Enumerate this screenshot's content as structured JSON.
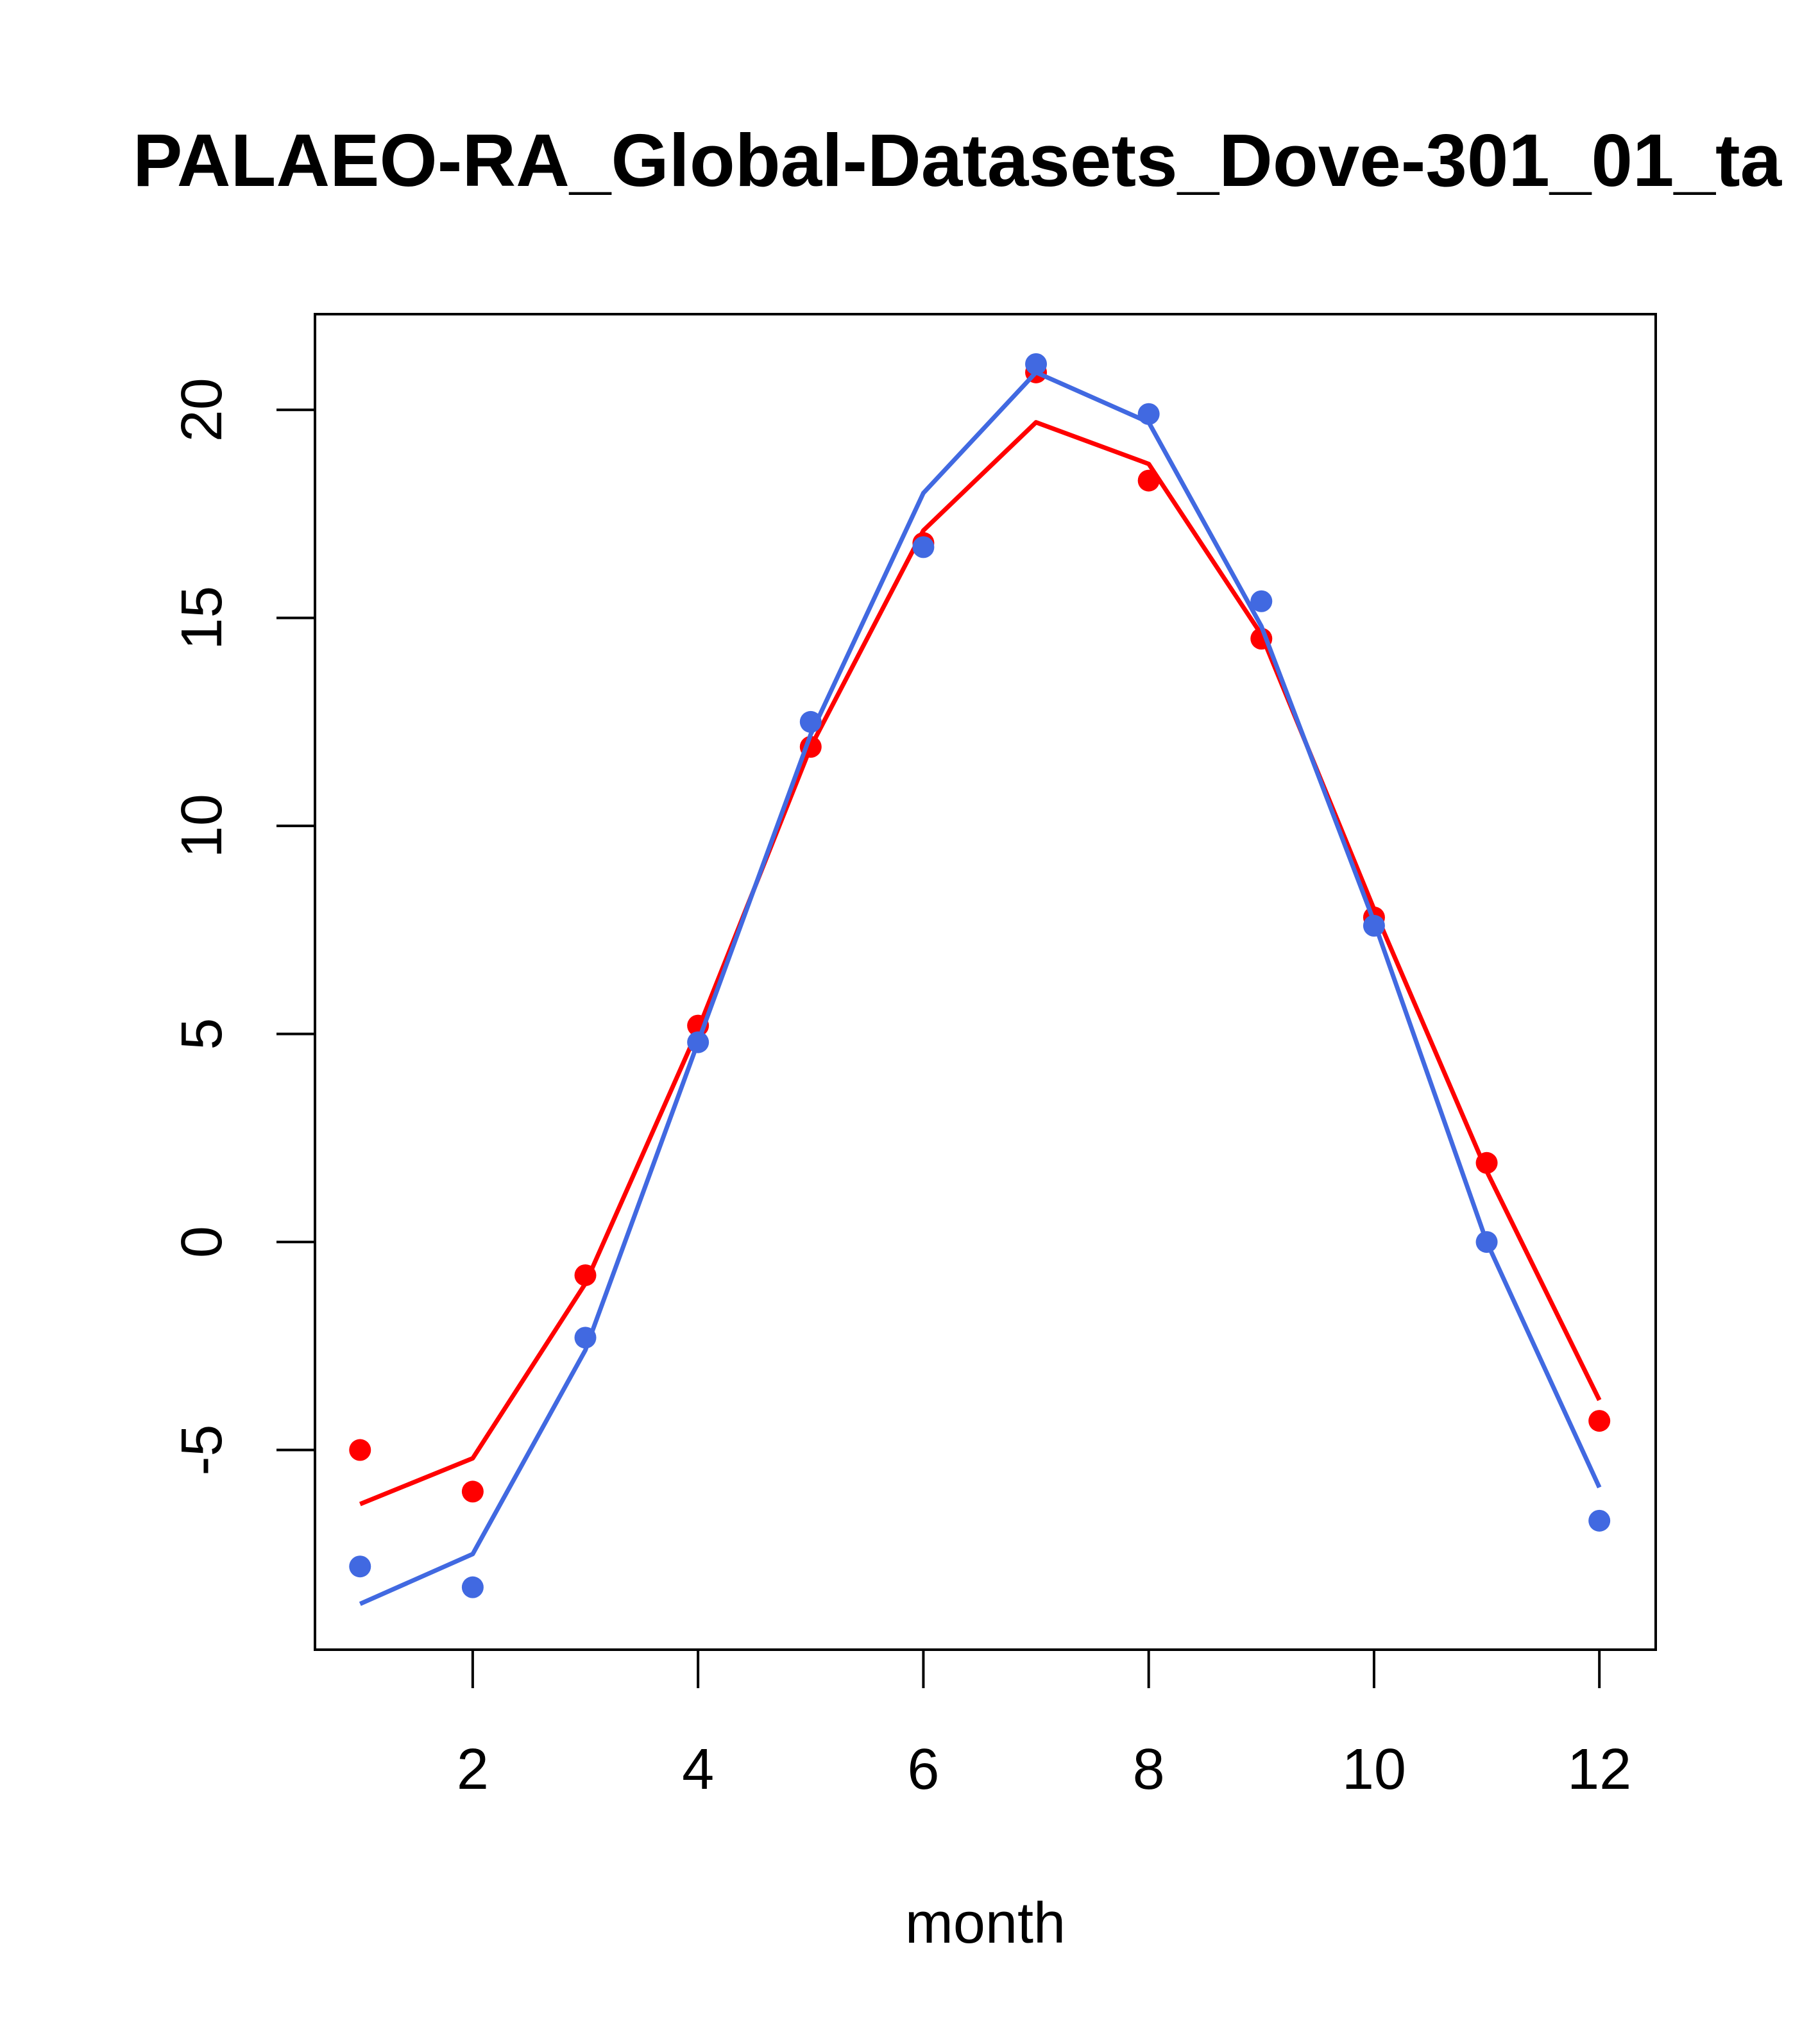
{
  "chart_data": {
    "type": "line",
    "title": "PALAEO-RA_Global-Datasets_Dove-301_01_ta",
    "xlabel": "month",
    "ylabel": "",
    "xlim": [
      0.6,
      12.5
    ],
    "ylim": [
      -9.8,
      22.3
    ],
    "x_ticks": [
      2,
      4,
      6,
      8,
      10,
      12
    ],
    "y_ticks": [
      -5,
      0,
      5,
      10,
      15,
      20
    ],
    "grid": false,
    "legend": "none",
    "x": [
      1,
      2,
      3,
      4,
      5,
      6,
      7,
      8,
      9,
      10,
      11,
      12
    ],
    "series": [
      {
        "color": "#ff0000",
        "points": [
          -5.0,
          -6.0,
          -0.8,
          5.2,
          11.9,
          16.8,
          20.9,
          18.3,
          14.5,
          7.8,
          1.9,
          -4.3
        ],
        "line": [
          -6.3,
          -5.2,
          -1.0,
          5.1,
          11.9,
          17.1,
          19.7,
          18.7,
          14.6,
          8.0,
          1.7,
          -3.8
        ]
      },
      {
        "color": "#4169e1",
        "points": [
          -7.8,
          -8.3,
          -2.3,
          4.8,
          12.5,
          16.7,
          21.1,
          19.9,
          15.4,
          7.6,
          0.0,
          -6.7
        ],
        "line": [
          -8.7,
          -7.5,
          -2.6,
          4.8,
          12.2,
          18.0,
          20.9,
          19.7,
          14.8,
          7.7,
          0.0,
          -5.9
        ]
      }
    ]
  }
}
